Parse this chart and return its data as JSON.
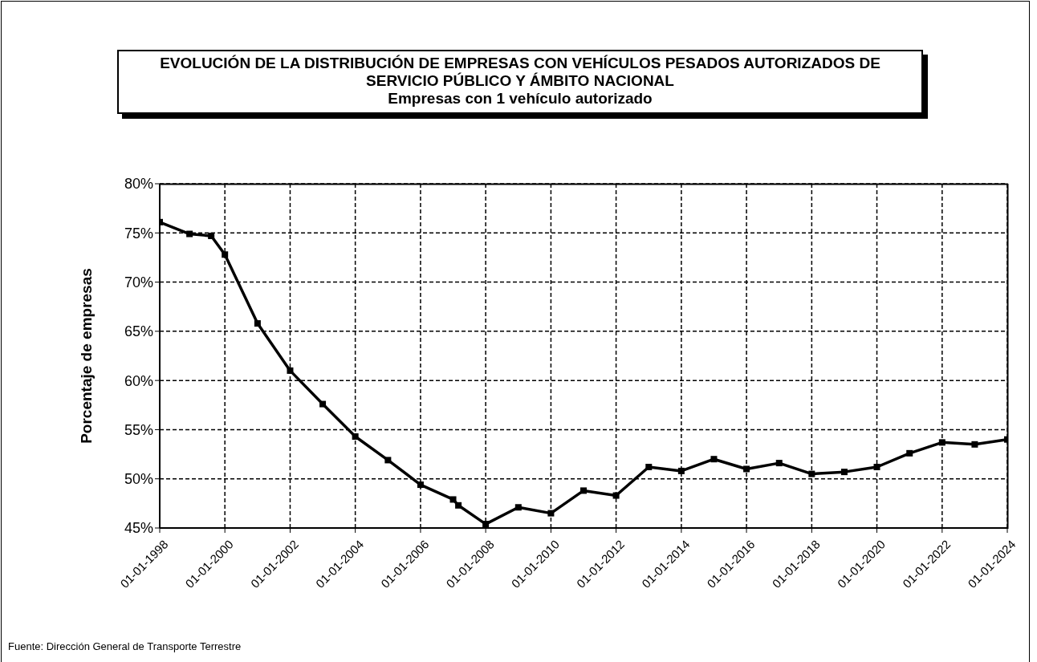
{
  "chart_data": {
    "type": "line",
    "title": "EVOLUCIÓN DE LA DISTRIBUCIÓN DE EMPRESAS CON VEHÍCULOS PESADOS AUTORIZADOS DE SERVICIO PÚBLICO Y ÁMBITO NACIONAL",
    "subtitle": "Empresas con 1 vehículo autorizado",
    "ylabel": "Porcentaje de empresas",
    "x": [
      "1998-01-01",
      "1998-12",
      "1999-08",
      "2000-01-01",
      "2001-01-01",
      "2002-01-01",
      "2003-01-01",
      "2004-01-01",
      "2005-01-01",
      "2006-01-01",
      "2007-01-01",
      "2007-03",
      "2008-01-01",
      "2009-01-01",
      "2010-01-01",
      "2011-01-01",
      "2012-01-01",
      "2013-01-01",
      "2014-01-01",
      "2015-01-01",
      "2016-01-01",
      "2017-01-01",
      "2018-01-01",
      "2019-01-01",
      "2020-01-01",
      "2021-01-01",
      "2022-01-01",
      "2023-01-01",
      "2024-01-01"
    ],
    "series": [
      {
        "color": "#000000",
        "values": [
          76.1,
          74.9,
          74.7,
          72.8,
          65.8,
          61.0,
          57.6,
          54.3,
          51.9,
          49.4,
          47.9,
          47.3,
          45.4,
          47.1,
          46.5,
          48.8,
          48.3,
          51.2,
          50.8,
          52.0,
          51.0,
          51.6,
          50.5,
          50.7,
          51.2,
          52.6,
          53.7,
          53.5,
          54.0
        ]
      }
    ],
    "xlim": [
      "1998-01-01",
      "2024-01-01"
    ],
    "xticks": [
      {
        "value": "1998-01-01",
        "label": "01-01-1998"
      },
      {
        "value": "2000-01-01",
        "label": "01-01-2000"
      },
      {
        "value": "2002-01-01",
        "label": "01-01-2002"
      },
      {
        "value": "2004-01-01",
        "label": "01-01-2004"
      },
      {
        "value": "2006-01-01",
        "label": "01-01-2006"
      },
      {
        "value": "2008-01-01",
        "label": "01-01-2008"
      },
      {
        "value": "2010-01-01",
        "label": "01-01-2010"
      },
      {
        "value": "2012-01-01",
        "label": "01-01-2012"
      },
      {
        "value": "2014-01-01",
        "label": "01-01-2014"
      },
      {
        "value": "2016-01-01",
        "label": "01-01-2016"
      },
      {
        "value": "2018-01-01",
        "label": "01-01-2018"
      },
      {
        "value": "2020-01-01",
        "label": "01-01-2020"
      },
      {
        "value": "2022-01-01",
        "label": "01-01-2022"
      },
      {
        "value": "2024-01-01",
        "label": "01-01-2024"
      }
    ],
    "ylim": [
      45,
      80
    ],
    "yticks": [
      {
        "value": 45,
        "label": "45%"
      },
      {
        "value": 50,
        "label": "50%"
      },
      {
        "value": 55,
        "label": "55%"
      },
      {
        "value": 60,
        "label": "60%"
      },
      {
        "value": 65,
        "label": "65%"
      },
      {
        "value": 70,
        "label": "70%"
      },
      {
        "value": 75,
        "label": "75%"
      },
      {
        "value": 80,
        "label": "80%"
      }
    ],
    "grid": true,
    "marker": "square",
    "line_style": "solid",
    "legend": false,
    "annotations": [
      "Fuente: Dirección General de Transporte Terrestre"
    ]
  }
}
